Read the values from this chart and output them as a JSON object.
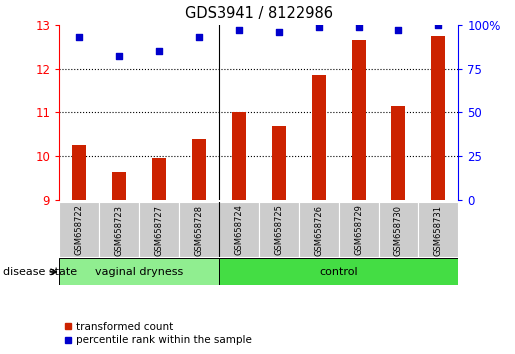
{
  "title": "GDS3941 / 8122986",
  "samples": [
    "GSM658722",
    "GSM658723",
    "GSM658727",
    "GSM658728",
    "GSM658724",
    "GSM658725",
    "GSM658726",
    "GSM658729",
    "GSM658730",
    "GSM658731"
  ],
  "bar_values": [
    10.25,
    9.65,
    9.95,
    10.4,
    11.0,
    10.7,
    11.85,
    12.65,
    11.15,
    12.75
  ],
  "dot_values": [
    93,
    82,
    85,
    93,
    97,
    96,
    99,
    99,
    97,
    100
  ],
  "group_labels": [
    "vaginal dryness",
    "control"
  ],
  "group_sizes": [
    4,
    6
  ],
  "bar_color": "#CC2200",
  "dot_color": "#0000CC",
  "ylim_left": [
    9,
    13
  ],
  "ylim_right": [
    0,
    100
  ],
  "yticks_left": [
    9,
    10,
    11,
    12,
    13
  ],
  "yticks_right": [
    0,
    25,
    50,
    75,
    100
  ],
  "legend_items": [
    "transformed count",
    "percentile rank within the sample"
  ],
  "xlabel": "disease state",
  "label_area_color": "#CCCCCC",
  "group_color_vd": "#90EE90",
  "group_color_ctrl": "#44DD44",
  "figsize": [
    5.15,
    3.54
  ],
  "dpi": 100
}
